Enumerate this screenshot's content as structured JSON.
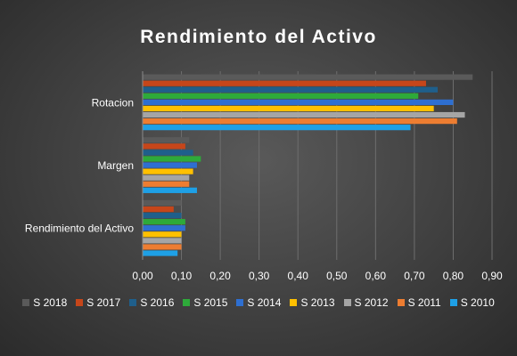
{
  "chart_data": {
    "type": "bar",
    "orientation": "horizontal",
    "title": "Rendimiento del Activo",
    "categories": [
      "Rotacion",
      "Margen",
      "Rendimiento del Activo"
    ],
    "xlim": [
      0,
      0.9
    ],
    "x_ticks": [
      "0,00",
      "0,10",
      "0,20",
      "0,30",
      "0,40",
      "0,50",
      "0,60",
      "0,70",
      "0,80",
      "0,90"
    ],
    "grid": true,
    "legend_position": "bottom",
    "series": [
      {
        "name": "S 2018",
        "color": "#5a5a5a",
        "values": [
          0.85,
          0.12,
          0.1
        ]
      },
      {
        "name": "S 2017",
        "color": "#c6461a",
        "values": [
          0.73,
          0.11,
          0.08
        ]
      },
      {
        "name": "S 2016",
        "color": "#1f5f8b",
        "values": [
          0.76,
          0.13,
          0.1
        ]
      },
      {
        "name": "S 2015",
        "color": "#2eaa3a",
        "values": [
          0.71,
          0.15,
          0.11
        ]
      },
      {
        "name": "S 2014",
        "color": "#2e6fd1",
        "values": [
          0.8,
          0.14,
          0.11
        ]
      },
      {
        "name": "S 2013",
        "color": "#ffc000",
        "values": [
          0.75,
          0.13,
          0.1
        ]
      },
      {
        "name": "S 2012",
        "color": "#a5a5a5",
        "values": [
          0.83,
          0.12,
          0.1
        ]
      },
      {
        "name": "S 2011",
        "color": "#ed7d31",
        "values": [
          0.81,
          0.12,
          0.1
        ]
      },
      {
        "name": "S 2010",
        "color": "#1ea0e6",
        "values": [
          0.69,
          0.14,
          0.09
        ]
      }
    ]
  }
}
